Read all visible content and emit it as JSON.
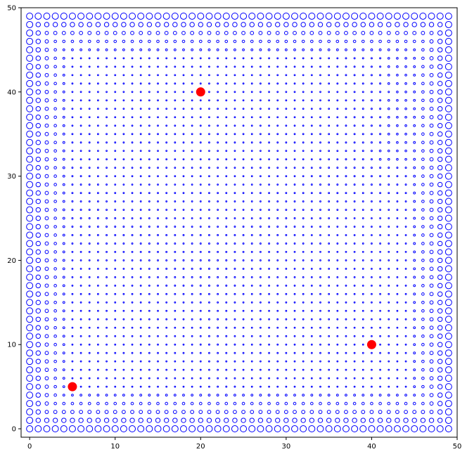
{
  "chart_data": {
    "type": "scatter",
    "title": "",
    "xlabel": "",
    "ylabel": "",
    "xlim": [
      -1,
      50
    ],
    "ylim": [
      -1,
      50
    ],
    "x_ticks": [
      0,
      10,
      20,
      30,
      40,
      50
    ],
    "y_ticks": [
      0,
      10,
      20,
      30,
      40,
      50
    ],
    "x_tick_labels": [
      "0",
      "10",
      "20",
      "30",
      "40",
      "50"
    ],
    "y_tick_labels": [
      "0",
      "10",
      "20",
      "30",
      "40",
      "50"
    ],
    "grid": false,
    "series": [
      {
        "marker": "hollow-circle",
        "color": "#0000ff",
        "grid_x": {
          "start": 0,
          "stop": 49,
          "step": 1
        },
        "grid_y": {
          "start": 0,
          "stop": 49,
          "step": 1
        },
        "size_encoding": "larger toward the plot edges, smallest near the three highlighted points"
      },
      {
        "marker": "filled-circle",
        "color": "#ff0000",
        "points": [
          {
            "x": 20,
            "y": 40
          },
          {
            "x": 40,
            "y": 10
          },
          {
            "x": 5,
            "y": 5
          }
        ]
      }
    ]
  }
}
